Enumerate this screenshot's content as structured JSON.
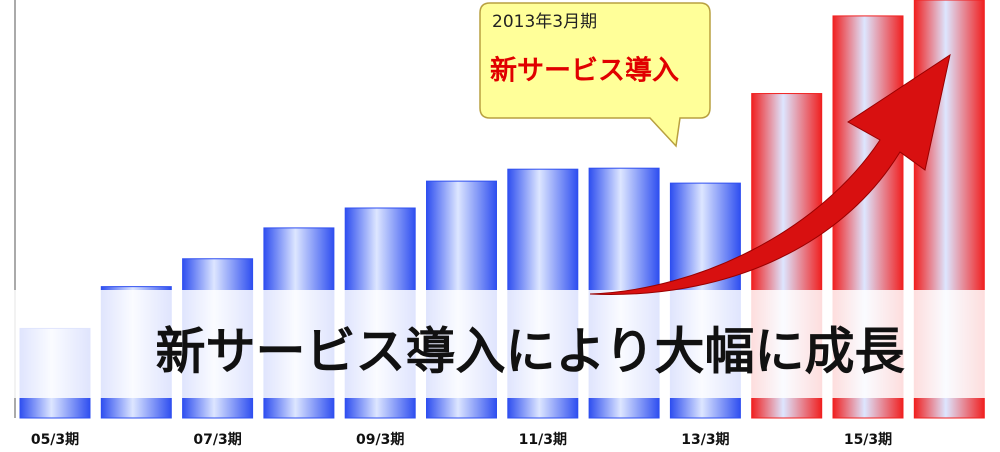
{
  "chart_data": {
    "type": "bar",
    "categories": [
      "05/3期",
      null,
      "07/3期",
      null,
      "09/3期",
      null,
      "11/3期",
      null,
      "13/3期",
      null,
      "15/3期",
      null
    ],
    "values": [
      90,
      132,
      160,
      191,
      211,
      238,
      250,
      251,
      236,
      326,
      404,
      420
    ],
    "colors": [
      "#2f4ff0",
      "#2f4ff0",
      "#2f4ff0",
      "#2f4ff0",
      "#2f4ff0",
      "#2f4ff0",
      "#2f4ff0",
      "#2f4ff0",
      "#2f4ff0",
      "#f02020",
      "#f02020",
      "#f02020"
    ],
    "ylim": [
      0,
      420
    ],
    "annotations": {
      "callout_date": "2013年3月期",
      "callout_text": "新サービス導入",
      "banner": "新サービス導入により大幅に成長"
    }
  }
}
